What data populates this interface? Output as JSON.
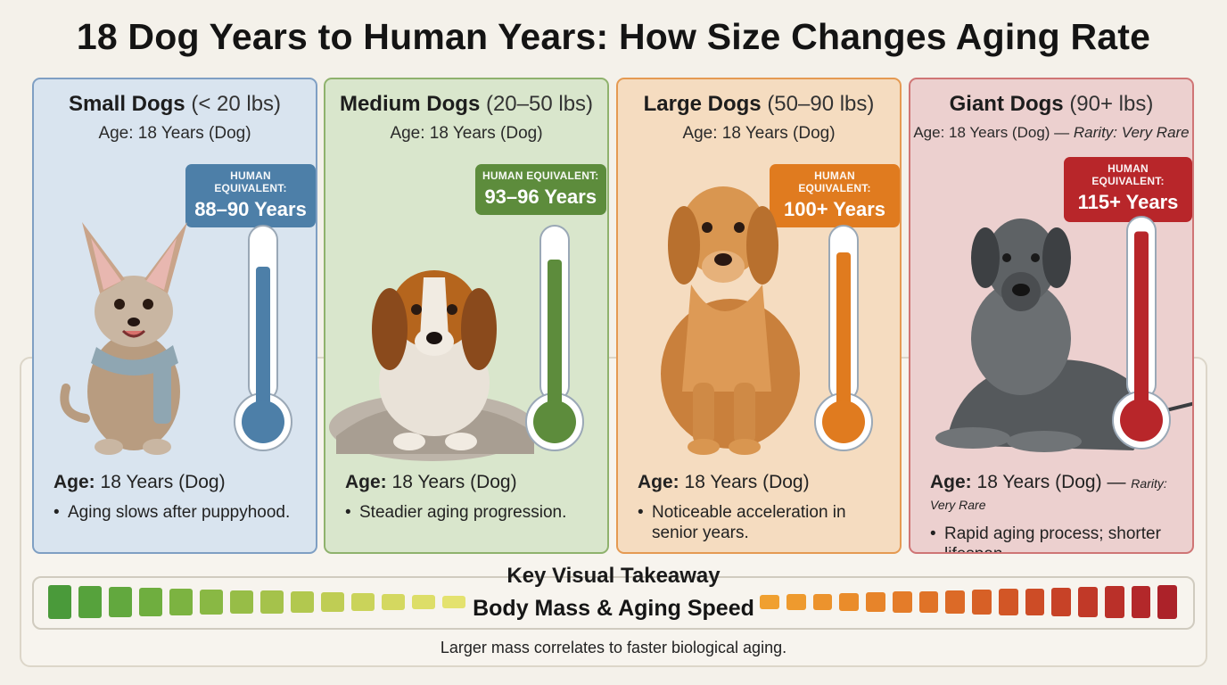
{
  "title": "18 Dog Years to Human Years: How Size Changes Aging Rate",
  "panels": [
    {
      "title_bold": "Small Dogs",
      "title_range": "(< 20 lbs)",
      "sub_age": "Age: 18 Years (Dog)",
      "sub_rarity": "",
      "badge_label": "HUMAN EQUIVALENT:",
      "badge_value": "88–90 Years",
      "foot_age_label": "Age:",
      "foot_age_value": "18 Years (Dog)",
      "foot_rarity": "",
      "bullet": "Aging slows after puppyhood.",
      "colors": {
        "bg": "#d9e4ef",
        "border": "#7f9fc3",
        "accent": "#4d7fa8"
      },
      "thermometer_fill_percent": 80
    },
    {
      "title_bold": "Medium Dogs",
      "title_range": "(20–50 lbs)",
      "sub_age": "Age: 18 Years (Dog)",
      "sub_rarity": "",
      "badge_label": "HUMAN EQUIVALENT:",
      "badge_value": "93–96 Years",
      "foot_age_label": "Age:",
      "foot_age_value": "18 Years (Dog)",
      "foot_rarity": "",
      "bullet": "Steadier aging progression.",
      "colors": {
        "bg": "#d9e6cc",
        "border": "#8fb26d",
        "accent": "#5d8c3c"
      },
      "thermometer_fill_percent": 84
    },
    {
      "title_bold": "Large Dogs",
      "title_range": "(50–90 lbs)",
      "sub_age": "Age: 18 Years (Dog)",
      "sub_rarity": "",
      "badge_label": "HUMAN EQUIVALENT:",
      "badge_value": "100+ Years",
      "foot_age_label": "Age:",
      "foot_age_value": "18 Years (Dog)",
      "foot_rarity": "",
      "bullet": "Noticeable acceleration in senior years.",
      "colors": {
        "bg": "#f5dcc0",
        "border": "#e59a52",
        "accent": "#e07b1f"
      },
      "thermometer_fill_percent": 88
    },
    {
      "title_bold": "Giant Dogs",
      "title_range": "(90+ lbs)",
      "sub_age": "Age: 18 Years (Dog) —",
      "sub_rarity": "Rarity: Very Rare",
      "badge_label": "HUMAN EQUIVALENT:",
      "badge_value": "115+ Years",
      "foot_age_label": "Age:",
      "foot_age_value": "18 Years (Dog) —",
      "foot_rarity": "Rarity: Very Rare",
      "bullet": "Rapid aging process; shorter lifespan.",
      "colors": {
        "bg": "#ecd0cf",
        "border": "#cf7575",
        "accent": "#b8262a"
      },
      "thermometer_fill_percent": 95
    }
  ],
  "takeaway": {
    "heading": "Key Visual Takeaway",
    "center_label": "Body Mass & Aging Speed",
    "caption": "Larger mass correlates to faster biological aging."
  },
  "scale_colors": {
    "left": [
      "#4a9a3a",
      "#56a23c",
      "#62a83e",
      "#6fae3f",
      "#7cb341",
      "#89b844",
      "#97bd47",
      "#a5c24b",
      "#b2c84f",
      "#bfcd54",
      "#cad35a",
      "#d4d860",
      "#ddde68",
      "#e4e26f"
    ],
    "right": [
      "#f0a030",
      "#ee9a2e",
      "#ec932d",
      "#ea8c2b",
      "#e7842a",
      "#e47c29",
      "#e07328",
      "#dc6a27",
      "#d76026",
      "#d25626",
      "#cd4c26",
      "#c74227",
      "#c13928",
      "#ba3029",
      "#b3282a",
      "#ac2229"
    ]
  }
}
